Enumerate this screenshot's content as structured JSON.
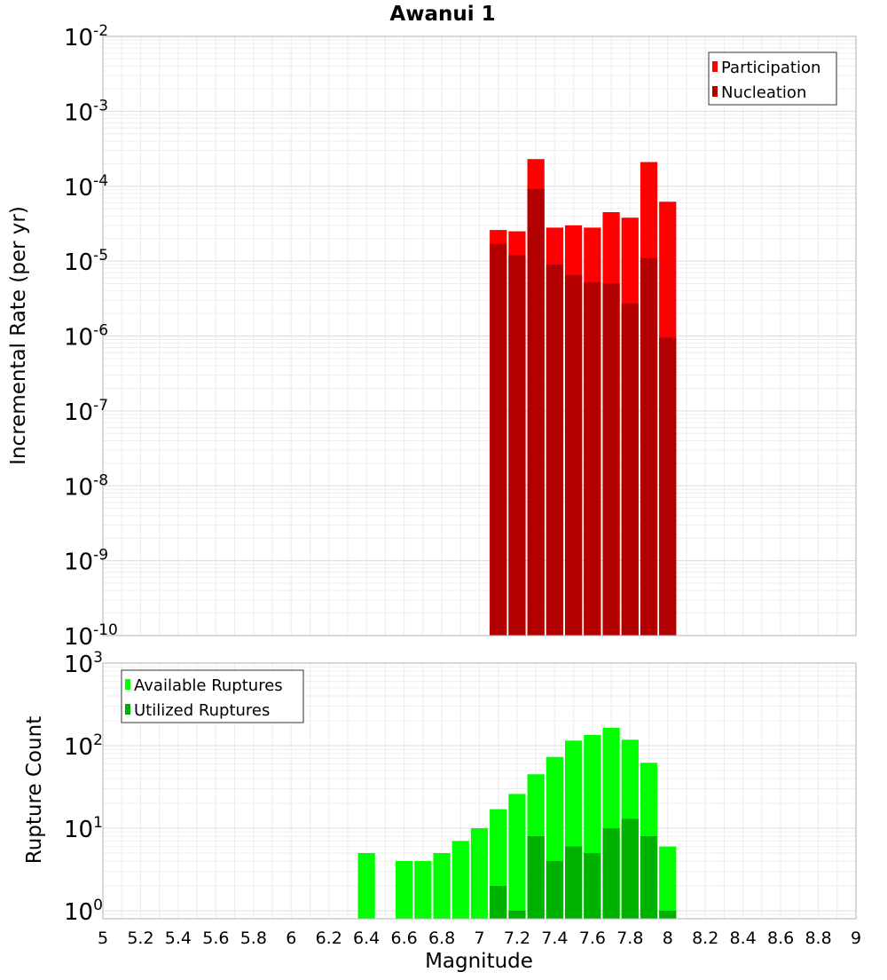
{
  "chart_data": [
    {
      "type": "bar",
      "title": "Awanui 1",
      "xlabel": "",
      "ylabel": "Incremental Rate (per yr)",
      "yscale": "log",
      "ylim": [
        1e-10,
        0.01
      ],
      "xlim": [
        5,
        9
      ],
      "ytick_labels": [
        {
          "base": "10",
          "exp": "-10"
        },
        {
          "base": "10",
          "exp": "-9"
        },
        {
          "base": "10",
          "exp": "-8"
        },
        {
          "base": "10",
          "exp": "-7"
        },
        {
          "base": "10",
          "exp": "-6"
        },
        {
          "base": "10",
          "exp": "-5"
        },
        {
          "base": "10",
          "exp": "-4"
        },
        {
          "base": "10",
          "exp": "-3"
        },
        {
          "base": "10",
          "exp": "-2"
        }
      ],
      "x": [
        7.1,
        7.2,
        7.3,
        7.4,
        7.5,
        7.6,
        7.7,
        7.8,
        7.9,
        8.0
      ],
      "series": [
        {
          "name": "Participation",
          "color": "#ff0000",
          "values": [
            2.6e-05,
            2.5e-05,
            0.00023,
            2.8e-05,
            3e-05,
            2.8e-05,
            4.5e-05,
            3.8e-05,
            0.00021,
            6.2e-05
          ]
        },
        {
          "name": "Nucleation",
          "color": "#b20000",
          "values": [
            1.7e-05,
            1.2e-05,
            9.2e-05,
            9e-06,
            6.5e-06,
            5.2e-06,
            5e-06,
            2.7e-06,
            1.1e-05,
            9.5e-07
          ]
        }
      ],
      "grid": true,
      "legend_position": "top-right"
    },
    {
      "type": "bar",
      "title": "",
      "xlabel": "Magnitude",
      "ylabel": "Rupture Count",
      "yscale": "log",
      "ylim": [
        0.8,
        1000
      ],
      "xlim": [
        5,
        9
      ],
      "ytick_labels": [
        {
          "base": "10",
          "exp": "0"
        },
        {
          "base": "10",
          "exp": "1"
        },
        {
          "base": "10",
          "exp": "2"
        },
        {
          "base": "10",
          "exp": "3"
        }
      ],
      "xtick_labels": [
        "5",
        "5.2",
        "5.4",
        "5.6",
        "5.8",
        "6",
        "6.2",
        "6.4",
        "6.6",
        "6.8",
        "7",
        "7.2",
        "7.4",
        "7.6",
        "7.8",
        "8",
        "8.2",
        "8.4",
        "8.6",
        "8.8",
        "9"
      ],
      "x": [
        6.4,
        6.6,
        6.7,
        6.8,
        6.9,
        7.0,
        7.1,
        7.2,
        7.3,
        7.4,
        7.5,
        7.6,
        7.7,
        7.8,
        7.9,
        8.0
      ],
      "series": [
        {
          "name": "Available Ruptures",
          "color": "#00ff00",
          "values": [
            5,
            4,
            4,
            5,
            7,
            10,
            17,
            26,
            45,
            73,
            115,
            135,
            165,
            118,
            62,
            6
          ]
        },
        {
          "name": "Utilized Ruptures",
          "color": "#00b200",
          "values": [
            null,
            null,
            null,
            null,
            null,
            null,
            2,
            1,
            8,
            4,
            6,
            5,
            10,
            13,
            8,
            1
          ]
        }
      ],
      "grid": true,
      "legend_position": "top-left"
    }
  ]
}
